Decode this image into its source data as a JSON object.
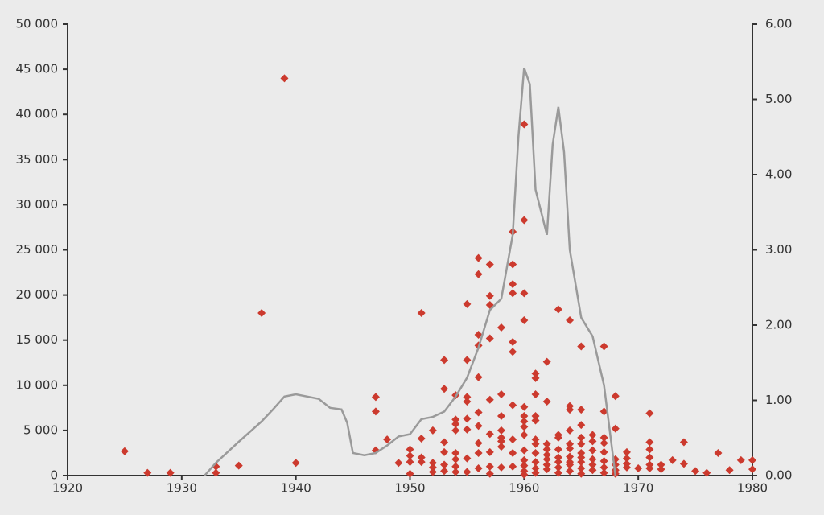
{
  "chart_data": {
    "type": "scatter",
    "xlim": [
      1920,
      1980
    ],
    "xticks": [
      1920,
      1930,
      1940,
      1950,
      1960,
      1970,
      1980
    ],
    "ylim": [
      0,
      50000
    ],
    "yticks": [
      0,
      {
        "value": 5000,
        "label": "5 000"
      },
      {
        "value": 10000,
        "label": "10 000"
      },
      {
        "value": 15000,
        "label": "15 000"
      },
      {
        "value": 20000,
        "label": "20 000"
      },
      {
        "value": 25000,
        "label": "25 000"
      },
      {
        "value": 30000,
        "label": "30 000"
      },
      {
        "value": 35000,
        "label": "35 000"
      },
      {
        "value": 40000,
        "label": "40 000"
      },
      {
        "value": 45000,
        "label": "45 000"
      },
      {
        "value": 50000,
        "label": "50 000"
      }
    ],
    "y2lim": [
      0,
      6
    ],
    "y2ticks": [
      {
        "value": 0,
        "label": "0.00"
      },
      {
        "value": 1,
        "label": "1.00"
      },
      {
        "value": 2,
        "label": "2.00"
      },
      {
        "value": 3,
        "label": "3.00"
      },
      {
        "value": 4,
        "label": "4.00"
      },
      {
        "value": 5,
        "label": "5.00"
      },
      {
        "value": 6,
        "label": "6.00"
      }
    ],
    "series": [
      {
        "type": "scatter",
        "color": "#cc3a2e",
        "x": [
          1925,
          1927,
          1929,
          1933,
          1933,
          1935,
          1937,
          1939,
          1940,
          1947,
          1947,
          1947,
          1948,
          1949,
          1950,
          1950,
          1950,
          1950,
          1951,
          1951,
          1951,
          1951,
          1952,
          1952,
          1952,
          1952,
          1953,
          1953,
          1953,
          1953,
          1953,
          1953,
          1954,
          1954,
          1954,
          1954,
          1954,
          1954,
          1954,
          1954,
          1955,
          1955,
          1955,
          1955,
          1955,
          1955,
          1955,
          1955,
          1956,
          1956,
          1956,
          1956,
          1956,
          1956,
          1956,
          1956,
          1956,
          1956,
          1957,
          1957,
          1957,
          1957,
          1957,
          1957,
          1957,
          1957,
          1957,
          1958,
          1958,
          1958,
          1958,
          1958,
          1958,
          1958,
          1958,
          1959,
          1959,
          1959,
          1959,
          1959,
          1959,
          1959,
          1959,
          1959,
          1959,
          1960,
          1960,
          1960,
          1960,
          1960,
          1960,
          1960,
          1960,
          1960,
          1960,
          1960,
          1960,
          1960,
          1960,
          1961,
          1961,
          1961,
          1961,
          1961,
          1961,
          1961,
          1961,
          1961,
          1961,
          1961,
          1962,
          1962,
          1962,
          1962,
          1962,
          1962,
          1962,
          1962,
          1963,
          1963,
          1963,
          1963,
          1963,
          1963,
          1963,
          1963,
          1964,
          1964,
          1964,
          1964,
          1964,
          1964,
          1964,
          1964,
          1964,
          1964,
          1965,
          1965,
          1965,
          1965,
          1965,
          1965,
          1965,
          1965,
          1965,
          1965,
          1966,
          1966,
          1966,
          1966,
          1966,
          1966,
          1967,
          1967,
          1967,
          1967,
          1967,
          1967,
          1967,
          1967,
          1968,
          1968,
          1968,
          1968,
          1968,
          1968,
          1969,
          1969,
          1969,
          1969,
          1970,
          1971,
          1971,
          1971,
          1971,
          1971,
          1971,
          1972,
          1972,
          1973,
          1974,
          1974,
          1975,
          1976,
          1977,
          1978,
          1979,
          1980,
          1980
        ],
        "values": [
          2700,
          300,
          300,
          1000,
          300,
          1100,
          18000,
          44000,
          1400,
          8700,
          7100,
          2800,
          4000,
          1400,
          2900,
          2200,
          1500,
          200,
          18000,
          4100,
          2000,
          1500,
          5000,
          1400,
          900,
          400,
          12800,
          9600,
          3700,
          2600,
          1200,
          500,
          8900,
          6200,
          5700,
          5000,
          2500,
          1800,
          1000,
          400,
          19000,
          12800,
          8700,
          8200,
          6300,
          5100,
          1900,
          400,
          24100,
          22300,
          15600,
          14400,
          10900,
          7000,
          5500,
          3600,
          2500,
          800,
          23400,
          19900,
          18900,
          15200,
          8400,
          4600,
          2600,
          1000,
          200,
          16400,
          9000,
          6600,
          5000,
          4200,
          3800,
          3200,
          900,
          27000,
          23400,
          21200,
          20200,
          14800,
          13700,
          7800,
          4000,
          2500,
          1000,
          38900,
          28300,
          20200,
          17200,
          7600,
          6600,
          6000,
          5400,
          4500,
          2800,
          1700,
          1100,
          500,
          100,
          11300,
          10800,
          9000,
          6600,
          6100,
          4000,
          3500,
          2500,
          1500,
          800,
          300,
          12600,
          8200,
          3500,
          2900,
          2300,
          1800,
          1200,
          700,
          18400,
          4500,
          4200,
          2900,
          2000,
          1500,
          900,
          300,
          17200,
          7700,
          7300,
          5000,
          3500,
          3000,
          2100,
          1500,
          1200,
          500,
          14300,
          7300,
          5600,
          4200,
          3500,
          2500,
          2000,
          1500,
          800,
          200,
          4500,
          3800,
          2800,
          1800,
          1200,
          600,
          14300,
          7100,
          4200,
          3600,
          2600,
          1600,
          900,
          300,
          8800,
          5200,
          1800,
          1200,
          600,
          200,
          2600,
          1900,
          1300,
          900,
          800,
          6900,
          3700,
          2900,
          2000,
          1200,
          800,
          1200,
          700,
          1700,
          3700,
          1300,
          500,
          300,
          2500,
          600,
          1700,
          1700,
          700
        ]
      },
      {
        "type": "line",
        "axis": "y2",
        "color": "#9a9a9a",
        "x": [
          1932,
          1933,
          1935,
          1937,
          1938,
          1939,
          1940,
          1941,
          1942,
          1943,
          1944,
          1944.5,
          1945,
          1946,
          1947,
          1948,
          1949,
          1950,
          1951,
          1952,
          1953,
          1954,
          1955,
          1956,
          1957,
          1958,
          1959,
          1959.5,
          1960,
          1960.5,
          1961,
          1962,
          1962.5,
          1963,
          1963.5,
          1964,
          1965,
          1966,
          1967,
          1968
        ],
        "values": [
          0,
          0.17,
          0.45,
          0.72,
          0.88,
          1.05,
          1.08,
          1.05,
          1.02,
          0.9,
          0.88,
          0.7,
          0.3,
          0.27,
          0.3,
          0.4,
          0.52,
          0.55,
          0.75,
          0.78,
          0.85,
          1.05,
          1.3,
          1.7,
          2.2,
          2.35,
          3.2,
          4.5,
          5.42,
          5.2,
          3.8,
          3.2,
          4.4,
          4.9,
          4.3,
          3.0,
          2.1,
          1.85,
          1.2,
          0
        ]
      }
    ]
  }
}
